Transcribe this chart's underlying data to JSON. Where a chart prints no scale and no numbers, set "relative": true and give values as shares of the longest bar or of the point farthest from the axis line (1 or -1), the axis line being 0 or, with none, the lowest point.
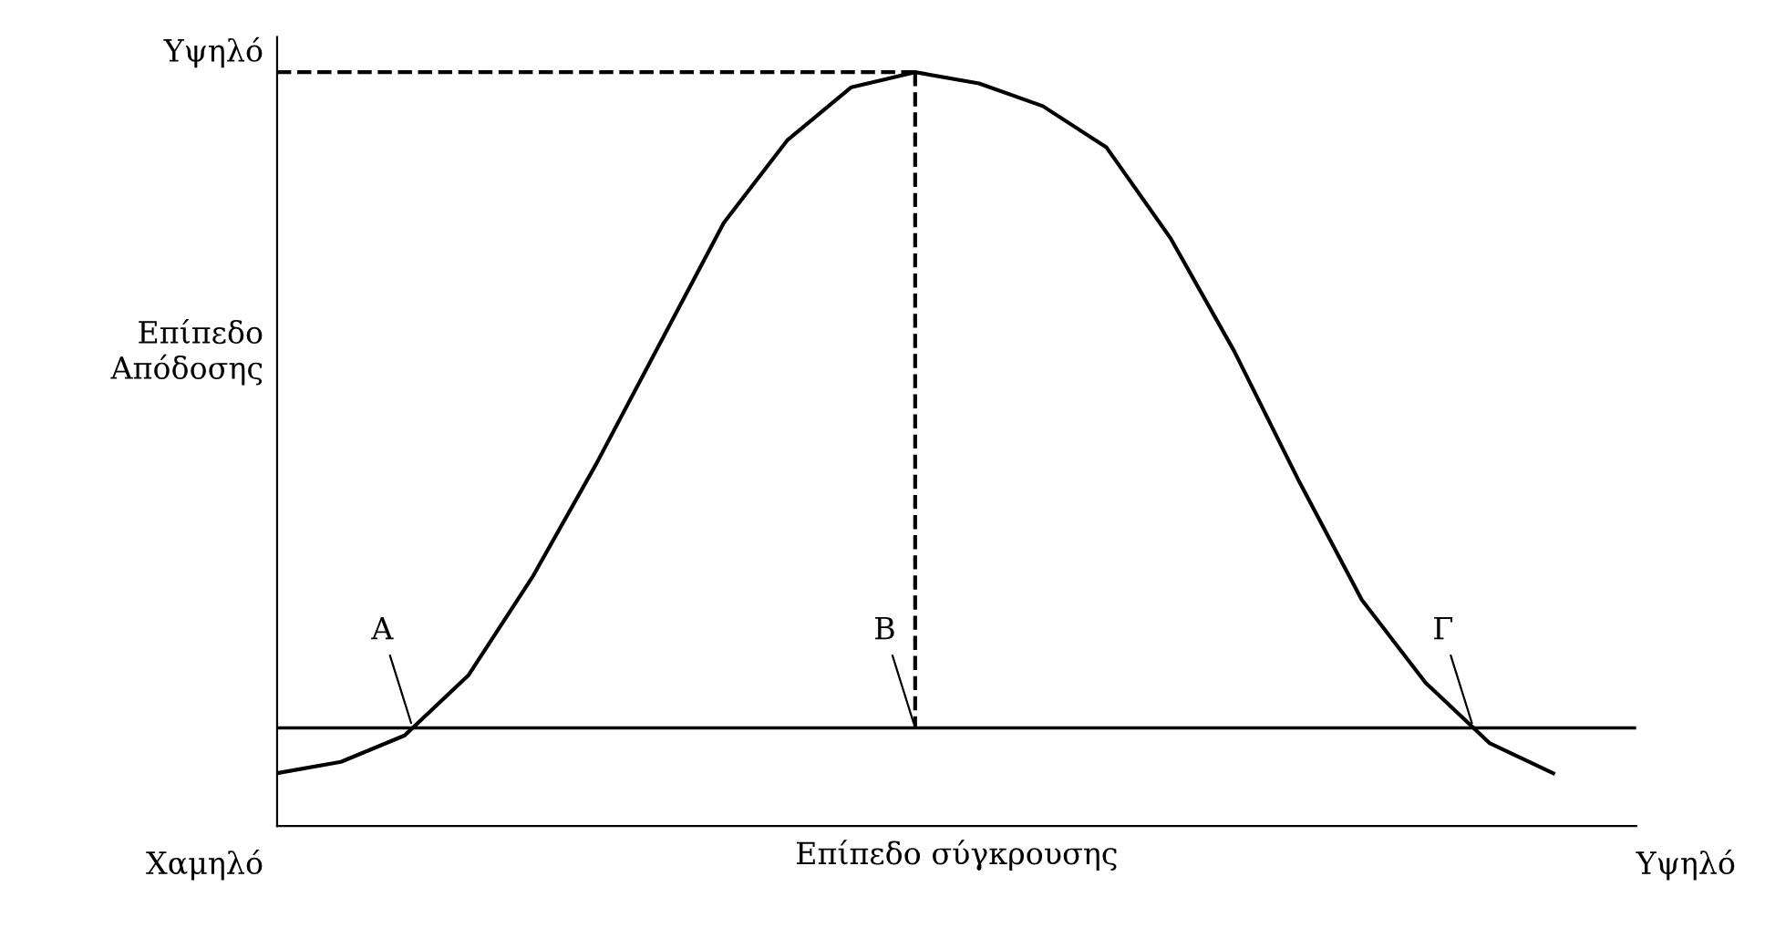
{
  "chart_data": {
    "type": "line",
    "relative": true,
    "xlabel": "Επίπεδο σύγκρουσης",
    "ylabel": "Επίπεδο\nΑπόδοσης",
    "categories": [
      null,
      null,
      null,
      null,
      null,
      null,
      null,
      null,
      null,
      null,
      null,
      null,
      null,
      null,
      null,
      null,
      null,
      null,
      null,
      null,
      null
    ],
    "series": [
      {
        "color": "#000000",
        "line_style": "solid",
        "values": [
          0.07,
          0.085,
          0.12,
          0.2,
          0.33,
          0.48,
          0.64,
          0.8,
          0.91,
          0.98,
          1.0,
          0.985,
          0.955,
          0.9,
          0.78,
          0.63,
          0.46,
          0.3,
          0.19,
          0.11,
          0.07
        ]
      },
      {
        "color": "#000000",
        "line_style": "dashed",
        "values": [
          1.0,
          1.0,
          1.0,
          1.0,
          1.0,
          1.0,
          1.0,
          1.0,
          1.0,
          1.0,
          1.0,
          null,
          null,
          null,
          null,
          null,
          null,
          null,
          null,
          null,
          null
        ]
      }
    ],
    "ref_lines": [
      {
        "axis": "y",
        "value": 0.13,
        "color": "#000000"
      }
    ],
    "annotations": [
      "Υψηλό",
      "Χαμηλό",
      "Υψηλό",
      {
        "text": "Α",
        "y": 0.13
      },
      {
        "text": "Β",
        "y": 0.13
      },
      {
        "text": "Γ",
        "y": 0.13
      }
    ],
    "grid": false,
    "legend": false,
    "marker": "none"
  }
}
